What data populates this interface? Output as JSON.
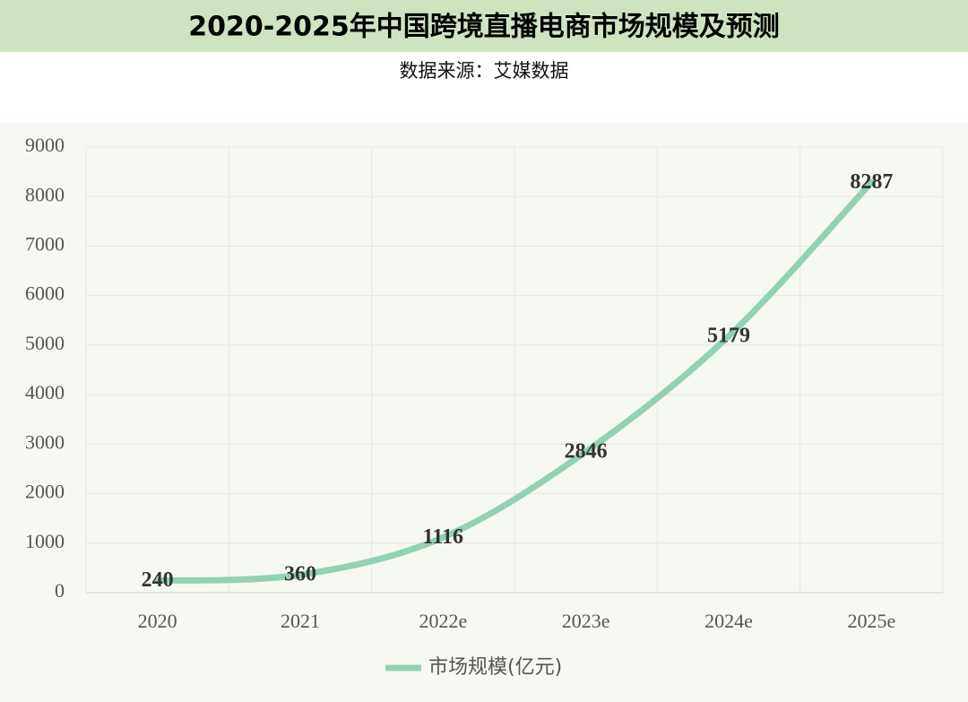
{
  "chart_data": {
    "type": "line",
    "title": "2020-2025年中国跨境直播电商市场规模及预测",
    "subtitle": "数据来源：艾媒数据",
    "categories": [
      "2020",
      "2021",
      "2022e",
      "2023e",
      "2024e",
      "2025e"
    ],
    "series": [
      {
        "name": "市场规模(亿元)",
        "color": "#93d1b3",
        "values": [
          240,
          360,
          1116,
          2846,
          5179,
          8287
        ]
      }
    ],
    "ylim": [
      0,
      9000
    ],
    "yticks": [
      0,
      1000,
      2000,
      3000,
      4000,
      5000,
      6000,
      7000,
      8000,
      9000
    ],
    "grid": true,
    "legend": "bottom"
  }
}
